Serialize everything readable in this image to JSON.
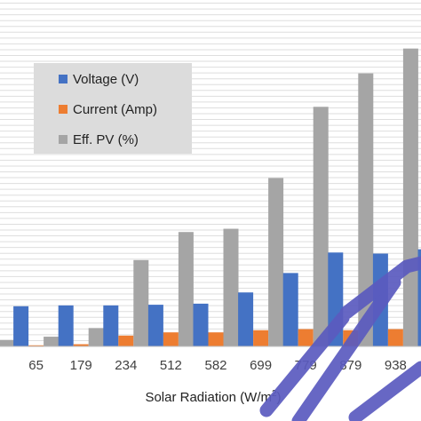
{
  "chart_data": {
    "type": "bar",
    "xlabel": "Solar Radiation (W/m",
    "xlabel_sup": "2",
    "xlabel_close": ")",
    "categories": [
      "",
      "65",
      "179",
      "234",
      "512",
      "582",
      "699",
      "779",
      "879",
      "938",
      ""
    ],
    "series": [
      {
        "name": "Voltage (V)",
        "color": "#4472C4",
        "values": [
          null,
          18.6,
          19.0,
          19.0,
          19.3,
          19.8,
          25.0,
          34.0,
          43.5,
          43.0,
          45.0
        ]
      },
      {
        "name": "Current (Amp)",
        "color": "#ED7D31",
        "values": [
          null,
          0.5,
          1.0,
          5.0,
          6.5,
          6.5,
          7.5,
          8.0,
          7.5,
          8.0,
          null
        ]
      },
      {
        "name": "Eff. PV (%)",
        "color": "#A5A5A5",
        "values": [
          3.0,
          4.5,
          8.5,
          40.0,
          53.0,
          54.5,
          78.0,
          111.0,
          126.5,
          138.0,
          null
        ]
      }
    ],
    "ylim": [
      0,
      150
    ],
    "grid": true,
    "legend_position": "top-left"
  },
  "watermark": {
    "color": "#5B5BBF"
  }
}
